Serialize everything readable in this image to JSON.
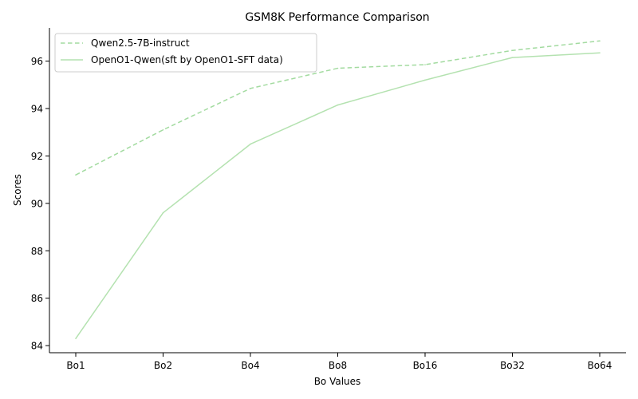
{
  "chart_data": {
    "type": "line",
    "title": "GSM8K Performance Comparison",
    "xlabel": "Bo Values",
    "ylabel": "Scores",
    "categories": [
      "Bo1",
      "Bo2",
      "Bo4",
      "Bo8",
      "Bo16",
      "Bo32",
      "Bo64"
    ],
    "ylim": [
      83.7,
      97.4
    ],
    "yticks": [
      84,
      86,
      88,
      90,
      92,
      94,
      96
    ],
    "legend_position": "top-left",
    "series": [
      {
        "name": "Qwen2.5-7B-instruct",
        "values": [
          91.2,
          93.1,
          94.85,
          95.7,
          95.85,
          96.45,
          96.85
        ],
        "color": "#a3dba0",
        "linestyle": "dashed"
      },
      {
        "name": "OpenO1-Qwen(sft by OpenO1-SFT data)",
        "values": [
          84.3,
          89.6,
          92.5,
          94.15,
          95.2,
          96.15,
          96.35
        ],
        "color": "#b4e2b0",
        "linestyle": "solid"
      }
    ]
  }
}
